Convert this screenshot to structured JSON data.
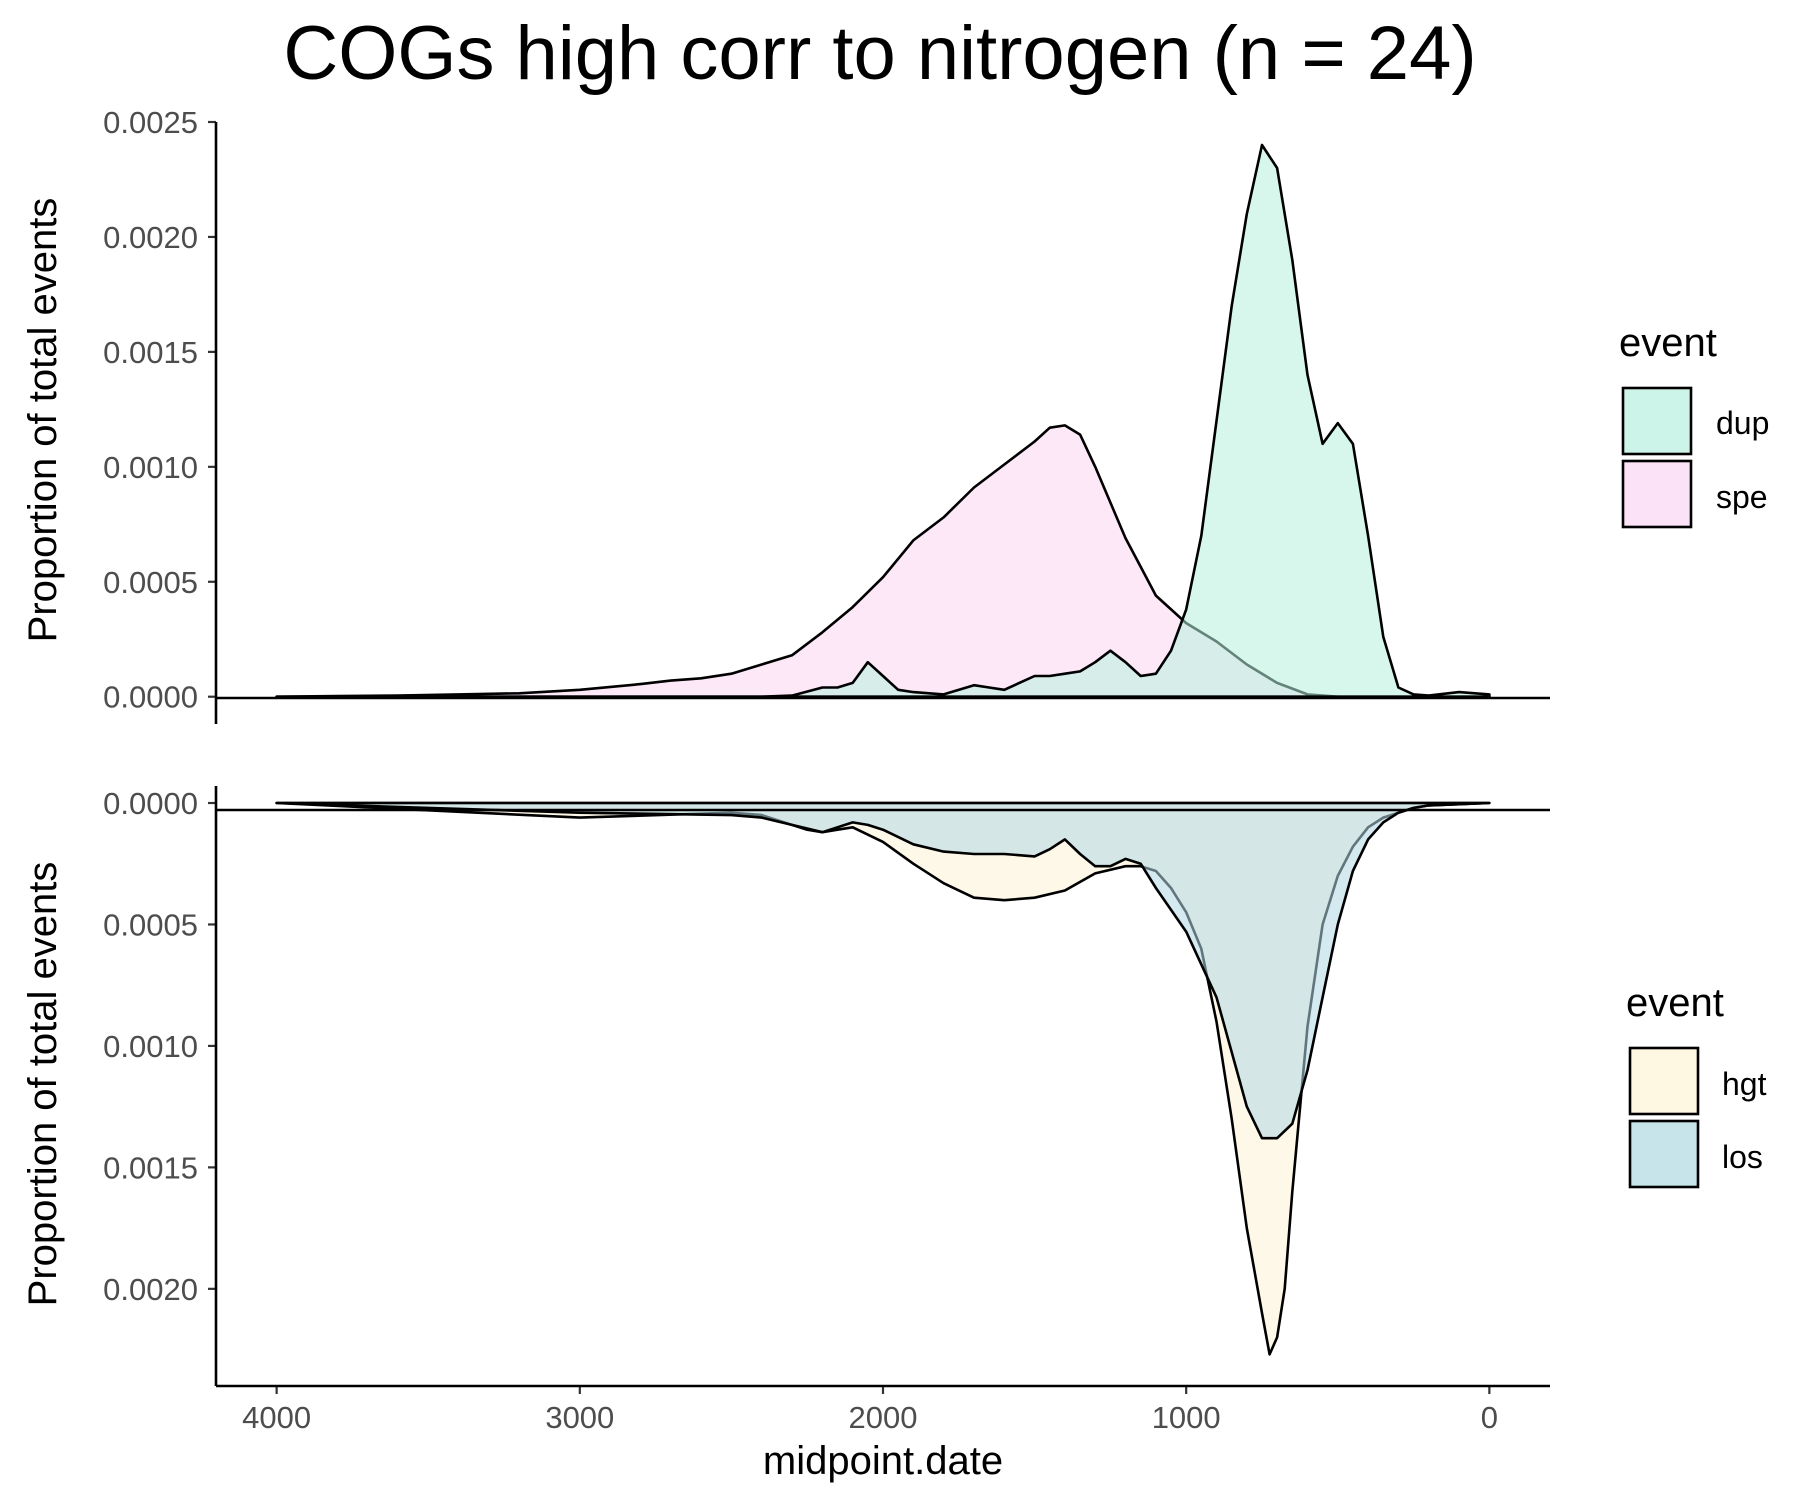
{
  "chart_data": [
    {
      "type": "area",
      "panel": "top",
      "title": "COGs high corr to nitrogen (n = 24)",
      "xlabel": "",
      "ylabel": "Proportion of total events",
      "x_reversed": true,
      "xlim": [
        4200,
        -200
      ],
      "ylim": [
        -0.00011,
        0.0025
      ],
      "y_ticks": [
        0,
        0.0005,
        0.001,
        0.0015,
        0.002,
        0.0025
      ],
      "y_tick_labels": [
        "0.0000",
        "0.0005",
        "0.0010",
        "0.0015",
        "0.0020",
        "0.0025"
      ],
      "grid": false,
      "legend": {
        "title": "event",
        "position": "right",
        "entries": [
          "dup",
          "spe"
        ]
      },
      "series": [
        {
          "name": "spe",
          "fill": "#fbd5f3",
          "x": [
            4000,
            3800,
            3600,
            3400,
            3200,
            3000,
            2800,
            2700,
            2600,
            2500,
            2400,
            2300,
            2200,
            2100,
            2000,
            1900,
            1800,
            1700,
            1600,
            1500,
            1450,
            1400,
            1350,
            1300,
            1200,
            1100,
            1000,
            900,
            800,
            700,
            600,
            500,
            400,
            300,
            200,
            100,
            0
          ],
          "y": [
            0,
            3e-06,
            5e-06,
            1e-05,
            1.5e-05,
            3e-05,
            5.5e-05,
            7e-05,
            8e-05,
            0.0001,
            0.00014,
            0.00018,
            0.00028,
            0.00039,
            0.00052,
            0.00068,
            0.00078,
            0.00091,
            0.00101,
            0.00111,
            0.00117,
            0.00118,
            0.00114,
            0.001,
            0.00069,
            0.00044,
            0.00032,
            0.00024,
            0.00014,
            6e-05,
            1e-05,
            0,
            0,
            0,
            0,
            0,
            0
          ]
        },
        {
          "name": "dup",
          "fill": "#b7f0de",
          "x": [
            4000,
            3000,
            2400,
            2300,
            2200,
            2150,
            2100,
            2050,
            2000,
            1950,
            1900,
            1800,
            1700,
            1650,
            1600,
            1500,
            1450,
            1400,
            1350,
            1300,
            1250,
            1200,
            1150,
            1100,
            1050,
            1000,
            950,
            900,
            850,
            800,
            750,
            700,
            650,
            600,
            550,
            500,
            450,
            400,
            350,
            300,
            250,
            200,
            100,
            0
          ],
          "y": [
            0,
            0,
            0,
            5e-06,
            4e-05,
            4e-05,
            6e-05,
            0.00015,
            9e-05,
            3e-05,
            2e-05,
            1e-05,
            5e-05,
            4e-05,
            3e-05,
            9e-05,
            9e-05,
            0.0001,
            0.00011,
            0.00015,
            0.0002,
            0.00015,
            9e-05,
            0.0001,
            0.0002,
            0.00038,
            0.0007,
            0.0012,
            0.0017,
            0.0021,
            0.0024,
            0.0023,
            0.0019,
            0.0014,
            0.0011,
            0.00119,
            0.0011,
            0.0007,
            0.00026,
            4e-05,
            1e-05,
            5e-06,
            2e-05,
            1e-05
          ]
        }
      ]
    },
    {
      "type": "area",
      "panel": "bottom",
      "title": "",
      "xlabel": "midpoint.date",
      "ylabel": "Proportion of total events",
      "x_reversed": true,
      "xlim": [
        4200,
        -200
      ],
      "ylim": [
        0.0024,
        -7e-05
      ],
      "x_ticks": [
        4000,
        3000,
        2000,
        1000,
        0
      ],
      "x_tick_labels": [
        "4000",
        "3000",
        "2000",
        "1000",
        "0"
      ],
      "y_ticks": [
        0,
        0.0005,
        0.001,
        0.0015,
        0.002
      ],
      "y_tick_labels": [
        "0.0000",
        "0.0005",
        "0.0010",
        "0.0015",
        "0.0020"
      ],
      "grid": false,
      "legend": {
        "title": "event",
        "position": "right",
        "entries": [
          "hgt",
          "los"
        ]
      },
      "series": [
        {
          "name": "hgt",
          "fill": "#fdf3d6",
          "x": [
            4000,
            3500,
            3000,
            2500,
            2400,
            2300,
            2250,
            2200,
            2150,
            2100,
            2000,
            1900,
            1800,
            1700,
            1600,
            1500,
            1400,
            1300,
            1200,
            1150,
            1100,
            1050,
            1000,
            950,
            900,
            850,
            800,
            750,
            725,
            700,
            675,
            650,
            600,
            550,
            500,
            450,
            400,
            350,
            300,
            250,
            200,
            100,
            0
          ],
          "y": [
            0,
            3e-05,
            6e-05,
            4e-05,
            5e-05,
            9e-05,
            0.00011,
            0.00012,
            0.00011,
            0.0001,
            0.00016,
            0.00025,
            0.00033,
            0.00039,
            0.0004,
            0.00039,
            0.00036,
            0.00029,
            0.00026,
            0.00026,
            0.00028,
            0.00035,
            0.00045,
            0.0006,
            0.0009,
            0.0013,
            0.00175,
            0.0021,
            0.00227,
            0.0022,
            0.002,
            0.0016,
            0.00092,
            0.0005,
            0.0003,
            0.00018,
            0.0001,
            6e-05,
            4e-05,
            2e-05,
            1e-05,
            5e-06,
            0
          ]
        },
        {
          "name": "los",
          "fill": "#b0d9e3",
          "x": [
            4000,
            3500,
            3000,
            2500,
            2400,
            2300,
            2200,
            2100,
            2050,
            2000,
            1900,
            1800,
            1700,
            1600,
            1500,
            1450,
            1400,
            1350,
            1300,
            1250,
            1200,
            1150,
            1100,
            1000,
            900,
            800,
            750,
            700,
            650,
            600,
            550,
            500,
            450,
            400,
            350,
            300,
            250,
            200,
            100,
            0
          ],
          "y": [
            0,
            2e-05,
            4e-05,
            5e-05,
            6e-05,
            9e-05,
            0.00012,
            8e-05,
            9e-05,
            0.00011,
            0.00017,
            0.0002,
            0.00021,
            0.00021,
            0.00022,
            0.00019,
            0.00015,
            0.00021,
            0.00026,
            0.00026,
            0.00023,
            0.00025,
            0.00035,
            0.00053,
            0.0008,
            0.00125,
            0.00138,
            0.00138,
            0.00132,
            0.0011,
            0.0008,
            0.0005,
            0.00028,
            0.00015,
            8e-05,
            4e-05,
            2e-05,
            1e-05,
            5e-06,
            0
          ]
        }
      ]
    }
  ]
}
